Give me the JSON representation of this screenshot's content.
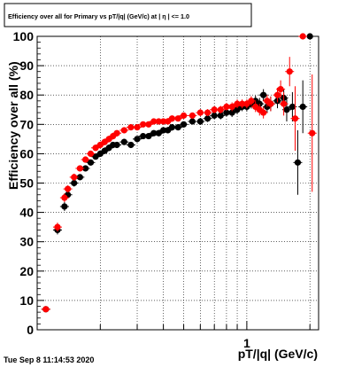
{
  "chart_data": {
    "type": "scatter",
    "title": "Efficiency over all for Primary vs pT/|q| (GeV/c) at | η | <= 1.0",
    "xlabel": "pT/|q| (GeV/c)",
    "ylabel": "Efficiency over all (%)",
    "x_scale": "log",
    "xlim": [
      0.1,
      2.2
    ],
    "ylim": [
      0,
      100
    ],
    "grid": true,
    "yticks": [
      0,
      10,
      20,
      30,
      40,
      50,
      60,
      70,
      80,
      90,
      100
    ],
    "xtick_labels": [
      {
        "value": 1,
        "label": "1"
      }
    ],
    "series": [
      {
        "name": "",
        "color": "#000000",
        "points": [
          [
            0.11,
            7,
            0
          ],
          [
            0.125,
            34,
            1.5
          ],
          [
            0.135,
            42,
            1.5
          ],
          [
            0.14,
            46,
            1.2
          ],
          [
            0.15,
            50,
            1.2
          ],
          [
            0.16,
            52,
            1
          ],
          [
            0.17,
            55,
            1
          ],
          [
            0.18,
            57,
            1
          ],
          [
            0.19,
            59,
            1
          ],
          [
            0.2,
            60,
            1
          ],
          [
            0.21,
            61,
            1
          ],
          [
            0.22,
            62,
            1
          ],
          [
            0.23,
            63,
            1
          ],
          [
            0.24,
            63,
            1
          ],
          [
            0.26,
            64,
            1
          ],
          [
            0.28,
            63,
            1
          ],
          [
            0.3,
            65,
            1
          ],
          [
            0.32,
            66,
            1
          ],
          [
            0.34,
            66,
            1
          ],
          [
            0.36,
            67,
            1
          ],
          [
            0.38,
            67,
            1
          ],
          [
            0.4,
            68,
            1
          ],
          [
            0.42,
            68,
            1
          ],
          [
            0.44,
            69,
            1
          ],
          [
            0.47,
            69,
            1
          ],
          [
            0.5,
            70,
            1
          ],
          [
            0.55,
            71,
            1
          ],
          [
            0.6,
            71,
            1.2
          ],
          [
            0.65,
            72,
            1.2
          ],
          [
            0.7,
            73,
            1.2
          ],
          [
            0.75,
            73,
            1.3
          ],
          [
            0.8,
            74,
            1.3
          ],
          [
            0.85,
            74,
            1.5
          ],
          [
            0.9,
            75,
            1.5
          ],
          [
            0.95,
            76,
            1.5
          ],
          [
            1.0,
            76,
            1.5
          ],
          [
            1.05,
            77,
            1.6
          ],
          [
            1.1,
            78,
            1.8
          ],
          [
            1.15,
            77,
            2
          ],
          [
            1.2,
            80,
            2
          ],
          [
            1.25,
            76,
            2
          ],
          [
            1.3,
            77,
            2.5
          ],
          [
            1.4,
            78,
            2.5
          ],
          [
            1.5,
            79,
            3
          ],
          [
            1.55,
            75,
            4
          ],
          [
            1.65,
            76,
            5
          ],
          [
            1.75,
            57,
            11
          ],
          [
            1.85,
            76,
            9
          ],
          [
            2.0,
            100,
            0
          ]
        ]
      },
      {
        "name": "",
        "color": "#ff0000",
        "points": [
          [
            0.11,
            7,
            0
          ],
          [
            0.125,
            35,
            1.5
          ],
          [
            0.135,
            45,
            1.5
          ],
          [
            0.14,
            48,
            1.2
          ],
          [
            0.15,
            52,
            1.2
          ],
          [
            0.16,
            55,
            1
          ],
          [
            0.17,
            58,
            1
          ],
          [
            0.18,
            60,
            1
          ],
          [
            0.19,
            62,
            1
          ],
          [
            0.2,
            63,
            1
          ],
          [
            0.21,
            64,
            1
          ],
          [
            0.22,
            65,
            1
          ],
          [
            0.23,
            66,
            1
          ],
          [
            0.24,
            67,
            1
          ],
          [
            0.26,
            68,
            1
          ],
          [
            0.28,
            69,
            1
          ],
          [
            0.3,
            69,
            1
          ],
          [
            0.32,
            70,
            1
          ],
          [
            0.34,
            70,
            1
          ],
          [
            0.36,
            71,
            1
          ],
          [
            0.38,
            71,
            1
          ],
          [
            0.4,
            71,
            1
          ],
          [
            0.42,
            71,
            1
          ],
          [
            0.44,
            72,
            1
          ],
          [
            0.47,
            72,
            1
          ],
          [
            0.5,
            73,
            1
          ],
          [
            0.55,
            73,
            1
          ],
          [
            0.6,
            74,
            1.2
          ],
          [
            0.65,
            74,
            1.2
          ],
          [
            0.7,
            75,
            1.2
          ],
          [
            0.75,
            75,
            1.3
          ],
          [
            0.8,
            76,
            1.3
          ],
          [
            0.85,
            76,
            1.5
          ],
          [
            0.9,
            77,
            1.5
          ],
          [
            0.95,
            77,
            1.5
          ],
          [
            1.0,
            77,
            1.5
          ],
          [
            1.05,
            78,
            1.6
          ],
          [
            1.1,
            76,
            1.8
          ],
          [
            1.15,
            75,
            2
          ],
          [
            1.2,
            74,
            2
          ],
          [
            1.25,
            78,
            2
          ],
          [
            1.3,
            77,
            2.5
          ],
          [
            1.4,
            80,
            2.5
          ],
          [
            1.45,
            82,
            3
          ],
          [
            1.5,
            77,
            4
          ],
          [
            1.6,
            88,
            5
          ],
          [
            1.7,
            72,
            11
          ],
          [
            1.85,
            100,
            0
          ],
          [
            2.05,
            67,
            20
          ]
        ]
      }
    ]
  },
  "footer": {
    "timestamp": "Tue Sep  8 11:14:53 2020"
  }
}
